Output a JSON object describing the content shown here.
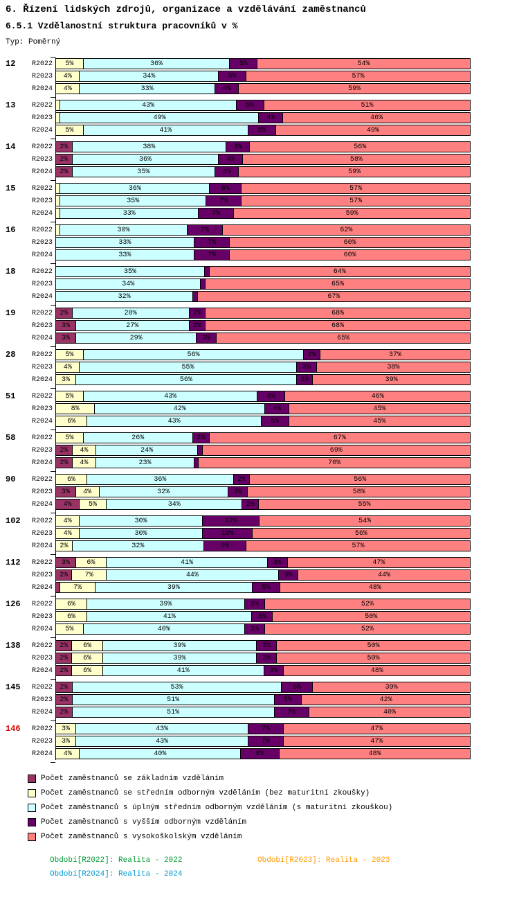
{
  "header": {
    "title": "6. Řízení lidských zdrojů, organizace a vzdělávání zaměstnanců",
    "subtitle": "6.5.1 Vzdělanostní struktura pracovníků v %",
    "type_label": "Typ: Poměrný"
  },
  "chart_data": {
    "type": "bar",
    "stacked": true,
    "orientation": "horizontal",
    "value_range": [
      0,
      100
    ],
    "unit": "%",
    "label_min_value": 2,
    "highlight_group_color": "#d40000",
    "series": [
      {
        "name": "Počet zaměstnanců se základním vzděláním",
        "color": "#993366"
      },
      {
        "name": "Počet zaměstnanců se středním odborným vzděláním (bez maturitní zkoušky)",
        "color": "#FFFFCC"
      },
      {
        "name": "Počet zaměstnanců s úplným středním odborným vzděláním (s maturitní zkouškou)",
        "color": "#CCFFFF"
      },
      {
        "name": "Počet zaměstnanců s vyšším odborným vzděláním",
        "color": "#660066"
      },
      {
        "name": "Počet zaměstnanců s vysokoškolským vzděláním",
        "color": "#FF8080"
      }
    ],
    "rows_per_group": [
      "R2022",
      "R2023",
      "R2024"
    ],
    "groups": [
      {
        "id": "12",
        "highlight": false,
        "values": [
          [
            0,
            5,
            36,
            5,
            54
          ],
          [
            0,
            4,
            34,
            5,
            57
          ],
          [
            0,
            4,
            33,
            4,
            59
          ]
        ]
      },
      {
        "id": "13",
        "highlight": false,
        "values": [
          [
            0,
            1,
            43,
            5,
            51
          ],
          [
            0,
            1,
            49,
            4,
            46
          ],
          [
            0,
            5,
            41,
            5,
            49
          ]
        ]
      },
      {
        "id": "14",
        "highlight": false,
        "values": [
          [
            2,
            0,
            38,
            4,
            56
          ],
          [
            2,
            0,
            36,
            4,
            58
          ],
          [
            2,
            0,
            35,
            4,
            59
          ]
        ]
      },
      {
        "id": "15",
        "highlight": false,
        "values": [
          [
            0,
            1,
            36,
            6,
            57
          ],
          [
            0,
            1,
            35,
            7,
            57
          ],
          [
            0,
            1,
            33,
            7,
            59
          ]
        ]
      },
      {
        "id": "16",
        "highlight": false,
        "values": [
          [
            0,
            1,
            30,
            7,
            62
          ],
          [
            0,
            0,
            33,
            7,
            60
          ],
          [
            0,
            0,
            33,
            7,
            60
          ]
        ]
      },
      {
        "id": "18",
        "highlight": false,
        "values": [
          [
            0,
            0,
            35,
            1,
            64
          ],
          [
            0,
            0,
            34,
            1,
            65
          ],
          [
            0,
            0,
            32,
            1,
            67
          ]
        ]
      },
      {
        "id": "19",
        "highlight": false,
        "values": [
          [
            2,
            0,
            28,
            2,
            68
          ],
          [
            3,
            0,
            27,
            2,
            68
          ],
          [
            3,
            0,
            29,
            3,
            65
          ]
        ]
      },
      {
        "id": "28",
        "highlight": false,
        "values": [
          [
            0,
            5,
            56,
            2,
            37
          ],
          [
            0,
            4,
            55,
            3,
            38
          ],
          [
            0,
            3,
            56,
            2,
            39
          ]
        ]
      },
      {
        "id": "51",
        "highlight": false,
        "values": [
          [
            0,
            5,
            43,
            5,
            46
          ],
          [
            0,
            8,
            42,
            4,
            45
          ],
          [
            0,
            6,
            43,
            5,
            45
          ]
        ]
      },
      {
        "id": "58",
        "highlight": false,
        "values": [
          [
            0,
            5,
            26,
            2,
            67
          ],
          [
            2,
            4,
            24,
            1,
            69
          ],
          [
            2,
            4,
            23,
            1,
            70
          ]
        ]
      },
      {
        "id": "90",
        "highlight": false,
        "values": [
          [
            0,
            6,
            36,
            2,
            56
          ],
          [
            3,
            4,
            32,
            3,
            58
          ],
          [
            4,
            5,
            34,
            2,
            55
          ]
        ]
      },
      {
        "id": "102",
        "highlight": false,
        "values": [
          [
            0,
            4,
            30,
            12,
            54
          ],
          [
            0,
            4,
            30,
            10,
            56
          ],
          [
            0,
            2,
            32,
            9,
            57
          ]
        ]
      },
      {
        "id": "112",
        "highlight": false,
        "values": [
          [
            3,
            6,
            41,
            3,
            47
          ],
          [
            2,
            7,
            44,
            3,
            44
          ],
          [
            1,
            7,
            39,
            5,
            48
          ]
        ]
      },
      {
        "id": "126",
        "highlight": false,
        "values": [
          [
            0,
            6,
            39,
            3,
            52
          ],
          [
            0,
            6,
            41,
            3,
            50
          ],
          [
            0,
            5,
            40,
            3,
            52
          ]
        ]
      },
      {
        "id": "138",
        "highlight": false,
        "values": [
          [
            2,
            6,
            39,
            3,
            50
          ],
          [
            2,
            6,
            39,
            3,
            50
          ],
          [
            2,
            6,
            41,
            3,
            48
          ]
        ]
      },
      {
        "id": "145",
        "highlight": false,
        "values": [
          [
            2,
            0,
            53,
            6,
            39
          ],
          [
            2,
            0,
            51,
            5,
            42
          ],
          [
            2,
            0,
            51,
            7,
            40
          ]
        ]
      },
      {
        "id": "146",
        "highlight": true,
        "values": [
          [
            0,
            3,
            43,
            7,
            47
          ],
          [
            0,
            3,
            43,
            7,
            47
          ],
          [
            0,
            4,
            40,
            8,
            48
          ]
        ]
      }
    ]
  },
  "periods": [
    {
      "label": "Období[R2022]:",
      "value": "Realita - 2022",
      "color": "#009933"
    },
    {
      "label": "Období[R2023]:",
      "value": "Realita - 2023",
      "color": "#FF9900"
    },
    {
      "label": "Období[R2024]:",
      "value": "Realita - 2024",
      "color": "#0099CC"
    }
  ]
}
